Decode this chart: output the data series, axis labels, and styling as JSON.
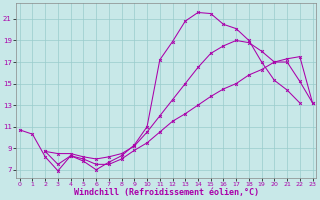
{
  "bg_color": "#c8e8e8",
  "line_color": "#aa00aa",
  "grid_color": "#99cccc",
  "xlabel": "Windchill (Refroidissement éolien,°C)",
  "xlabel_fontsize": 6.0,
  "xtick_labels": [
    "0",
    "1",
    "2",
    "3",
    "4",
    "5",
    "6",
    "7",
    "8",
    "9",
    "10",
    "11",
    "12",
    "13",
    "14",
    "15",
    "16",
    "17",
    "18",
    "19",
    "20",
    "21",
    "22",
    "23"
  ],
  "xticks": [
    0,
    1,
    2,
    3,
    4,
    5,
    6,
    7,
    8,
    9,
    10,
    11,
    12,
    13,
    14,
    15,
    16,
    17,
    18,
    19,
    20,
    21,
    22,
    23
  ],
  "yticks": [
    7,
    9,
    11,
    13,
    15,
    17,
    19,
    21
  ],
  "xlim": [
    -0.3,
    23.3
  ],
  "ylim": [
    6.2,
    22.5
  ],
  "line1_x": [
    0,
    1,
    2,
    3,
    4,
    5,
    6,
    7,
    8,
    9,
    10,
    11,
    12,
    13,
    14,
    15,
    16,
    17,
    18,
    19,
    20,
    21,
    22
  ],
  "line1_y": [
    10.7,
    10.3,
    8.2,
    6.9,
    8.3,
    7.8,
    7.0,
    7.7,
    8.3,
    9.3,
    11.0,
    17.2,
    18.9,
    20.8,
    21.6,
    21.5,
    20.5,
    20.1,
    19.0,
    17.0,
    15.3,
    14.4,
    13.2
  ],
  "line2_x": [
    2,
    3,
    4,
    5,
    6,
    7,
    8,
    9,
    10,
    11,
    12,
    13,
    14,
    15,
    16,
    17,
    18,
    19,
    20,
    21,
    22,
    23
  ],
  "line2_y": [
    8.7,
    8.5,
    8.5,
    8.2,
    8.0,
    8.2,
    8.5,
    9.2,
    10.5,
    12.0,
    13.5,
    15.0,
    16.5,
    17.8,
    18.5,
    19.0,
    18.8,
    18.0,
    17.0,
    17.0,
    15.2,
    13.2
  ],
  "line3_x": [
    2,
    3,
    4,
    5,
    6,
    7,
    8,
    9,
    10,
    11,
    12,
    13,
    14,
    15,
    16,
    17,
    18,
    19,
    20,
    21,
    22,
    23
  ],
  "line3_y": [
    8.7,
    7.5,
    8.3,
    8.0,
    7.5,
    7.5,
    8.0,
    8.8,
    9.5,
    10.5,
    11.5,
    12.2,
    13.0,
    13.8,
    14.5,
    15.0,
    15.8,
    16.3,
    17.0,
    17.3,
    17.5,
    13.2
  ]
}
